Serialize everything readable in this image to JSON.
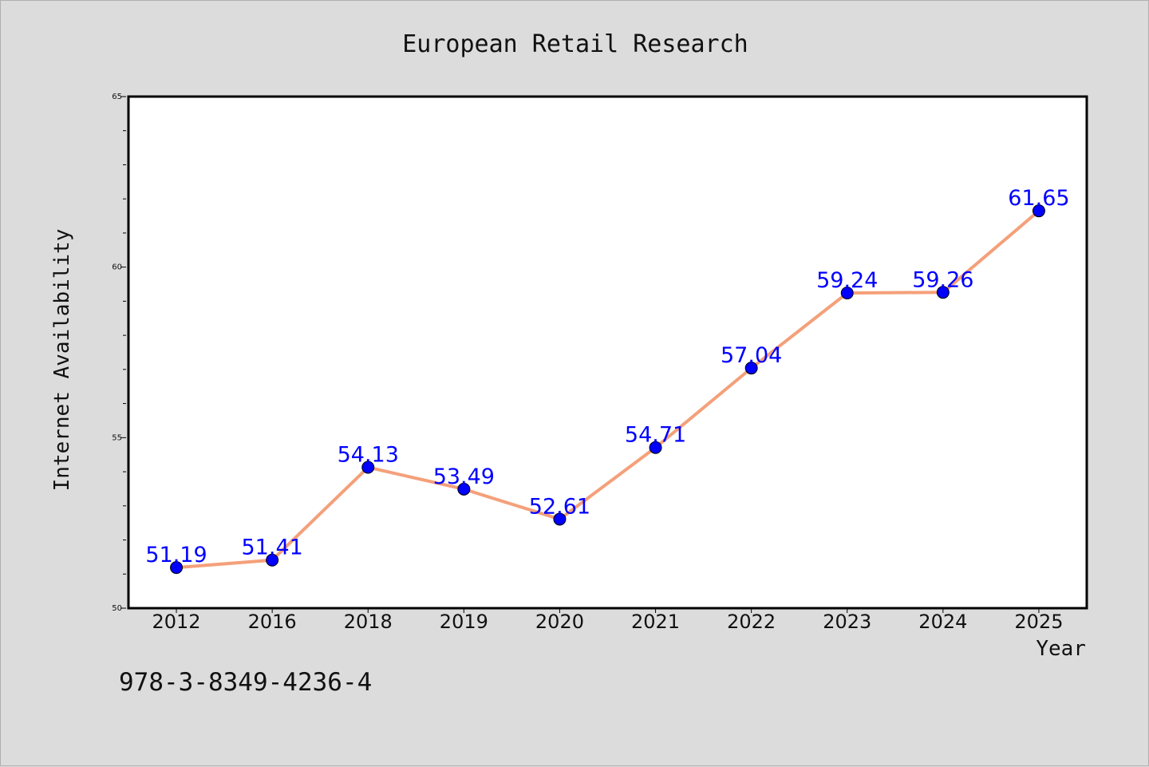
{
  "chart_data": {
    "type": "line",
    "title": "European Retail Research",
    "xlabel": "Year",
    "ylabel": "Internet Availability",
    "categories": [
      "2012",
      "2016",
      "2018",
      "2019",
      "2020",
      "2021",
      "2022",
      "2023",
      "2024",
      "2025"
    ],
    "series": [
      {
        "values": [
          51.19,
          51.41,
          54.13,
          53.49,
          52.61,
          54.71,
          57.04,
          59.24,
          59.26,
          61.65
        ],
        "data_labels": [
          "51.19",
          "51.41",
          "54.13",
          "53.49",
          "52.61",
          "54.71",
          "57.04",
          "59.24",
          "59.26",
          "61.65"
        ],
        "line_color": "#f4a07a",
        "marker_color": "#0000ff"
      }
    ],
    "ylim": [
      50,
      65
    ],
    "yticks": [
      "50",
      "55",
      "60",
      "65"
    ],
    "grid": false,
    "legend": "none"
  },
  "footer": {
    "code": "978-3-8349-4236-4"
  },
  "colors": {
    "background": "#dcdcdc",
    "plot_background": "#ffffff",
    "line": "#f4a07a",
    "marker": "#0000ff",
    "data_label": "#0000ff"
  }
}
